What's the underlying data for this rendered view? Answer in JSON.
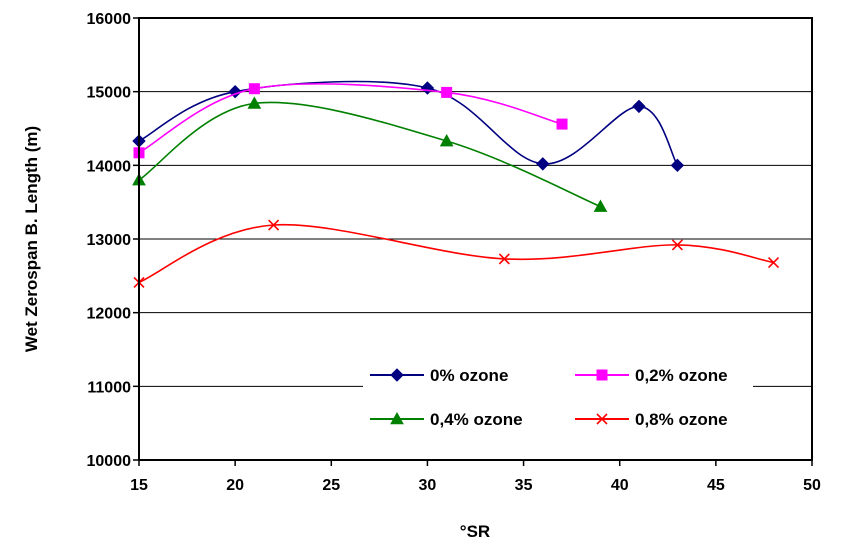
{
  "chart_data": {
    "type": "line",
    "title": "",
    "xlabel": "°SR",
    "ylabel": "Wet Zerospan B. Length (m)",
    "xlim": [
      15,
      50
    ],
    "ylim": [
      10000,
      16000
    ],
    "x_ticks": [
      "15",
      "20",
      "25",
      "30",
      "35",
      "40",
      "45",
      "50"
    ],
    "y_ticks": [
      "10000",
      "11000",
      "12000",
      "13000",
      "14000",
      "15000",
      "16000"
    ],
    "grid": "horizontal",
    "smoothed": true,
    "legend_position": "lower-right",
    "series": [
      {
        "name": "0% ozone",
        "color": "#000080",
        "marker": "diamond",
        "points": [
          [
            15,
            14330
          ],
          [
            20,
            15000
          ],
          [
            30,
            15050
          ],
          [
            36,
            14020
          ],
          [
            41,
            14800
          ],
          [
            43,
            14000
          ]
        ]
      },
      {
        "name": "0,2% ozone",
        "color": "#FF00FF",
        "marker": "square",
        "points": [
          [
            15,
            14170
          ],
          [
            21,
            15040
          ],
          [
            31,
            14990
          ],
          [
            37,
            14560
          ]
        ]
      },
      {
        "name": "0,4% ozone",
        "color": "#008000",
        "marker": "triangle",
        "points": [
          [
            15,
            13800
          ],
          [
            21,
            14840
          ],
          [
            31,
            14330
          ],
          [
            39,
            13440
          ]
        ]
      },
      {
        "name": "0,8% ozone",
        "color": "#FF0000",
        "marker": "x",
        "points": [
          [
            15,
            12410
          ],
          [
            22,
            13190
          ],
          [
            34,
            12730
          ],
          [
            43,
            12920
          ],
          [
            48,
            12680
          ]
        ]
      }
    ]
  }
}
